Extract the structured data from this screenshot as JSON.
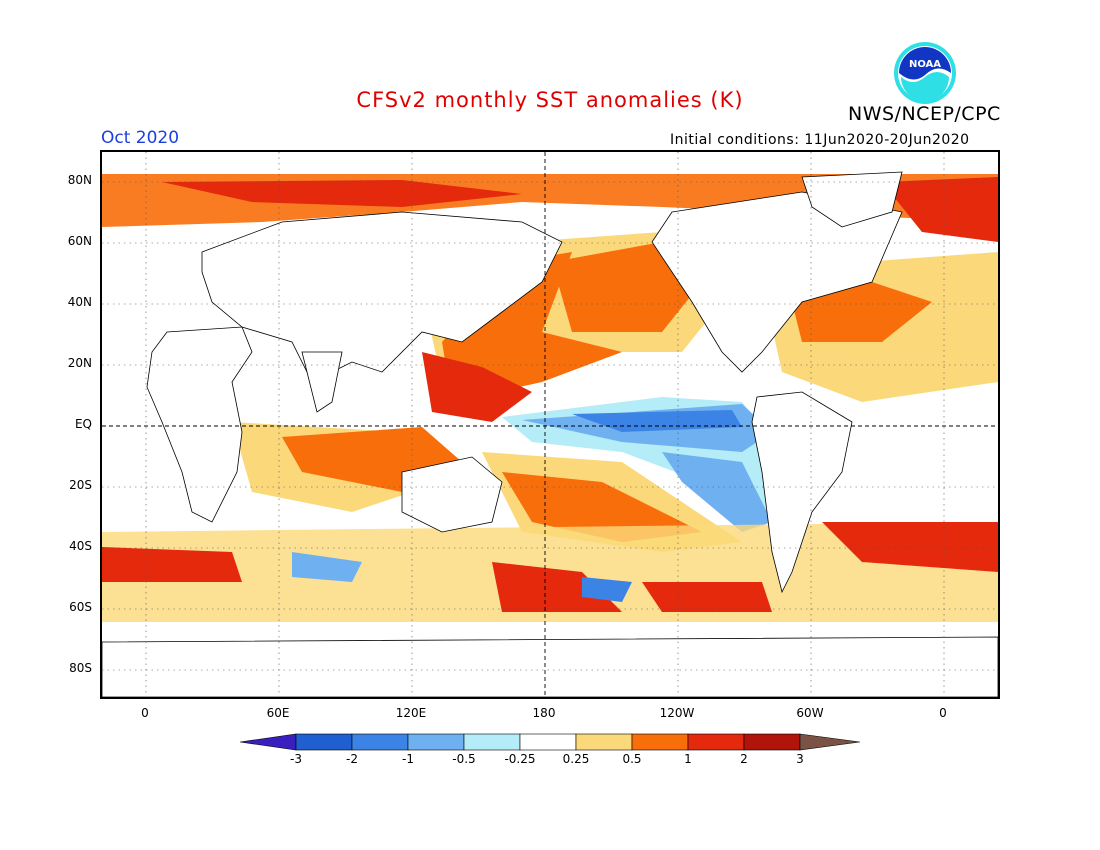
{
  "header": {
    "title": "CFSv2 monthly SST anomalies (K)",
    "agency": "NWS/NCEP/CPC",
    "valid_month": "Oct 2020",
    "initial_conditions": "Initial conditions: 11Jun2020-20Jun2020"
  },
  "logo": {
    "icon": "noaa-logo-icon",
    "text": "NOAA"
  },
  "axes": {
    "lat_labels": [
      {
        "text": "80N",
        "lat": 80
      },
      {
        "text": "60N",
        "lat": 60
      },
      {
        "text": "40N",
        "lat": 40
      },
      {
        "text": "20N",
        "lat": 20
      },
      {
        "text": "EQ",
        "lat": 0
      },
      {
        "text": "20S",
        "lat": -20
      },
      {
        "text": "40S",
        "lat": -40
      },
      {
        "text": "60S",
        "lat": -60
      },
      {
        "text": "80S",
        "lat": -80
      }
    ],
    "lon_labels": [
      {
        "text": "0",
        "lon": 0
      },
      {
        "text": "60E",
        "lon": 60
      },
      {
        "text": "120E",
        "lon": 120
      },
      {
        "text": "180",
        "lon": 180
      },
      {
        "text": "120W",
        "lon": 240
      },
      {
        "text": "60W",
        "lon": 300
      },
      {
        "text": "0",
        "lon": 360
      }
    ],
    "lon_range": [
      -20,
      385
    ],
    "lat_range": [
      -90,
      90
    ]
  },
  "colorbar": {
    "labels": [
      "-3",
      "-2",
      "-1",
      "-0.5",
      "-0.25",
      "0.25",
      "0.5",
      "1",
      "2",
      "3"
    ],
    "colors": [
      "#3a1fbf",
      "#1f5fcf",
      "#3c83e6",
      "#6fb0f0",
      "#b4ecf7",
      "#ffffff",
      "#fbd97a",
      "#f86e0a",
      "#e4290c",
      "#b0140a",
      "#7a5246"
    ]
  },
  "anomaly_colors": {
    "strong_cold": "#3c83e6",
    "cold": "#6fb0f0",
    "weak_cold": "#b4ecf7",
    "weak_warm": "#fbd97a",
    "warm": "#f86e0a",
    "strong_warm": "#e4290c",
    "very_strong_warm": "#b0140a",
    "extreme_warm": "#7a5246"
  }
}
